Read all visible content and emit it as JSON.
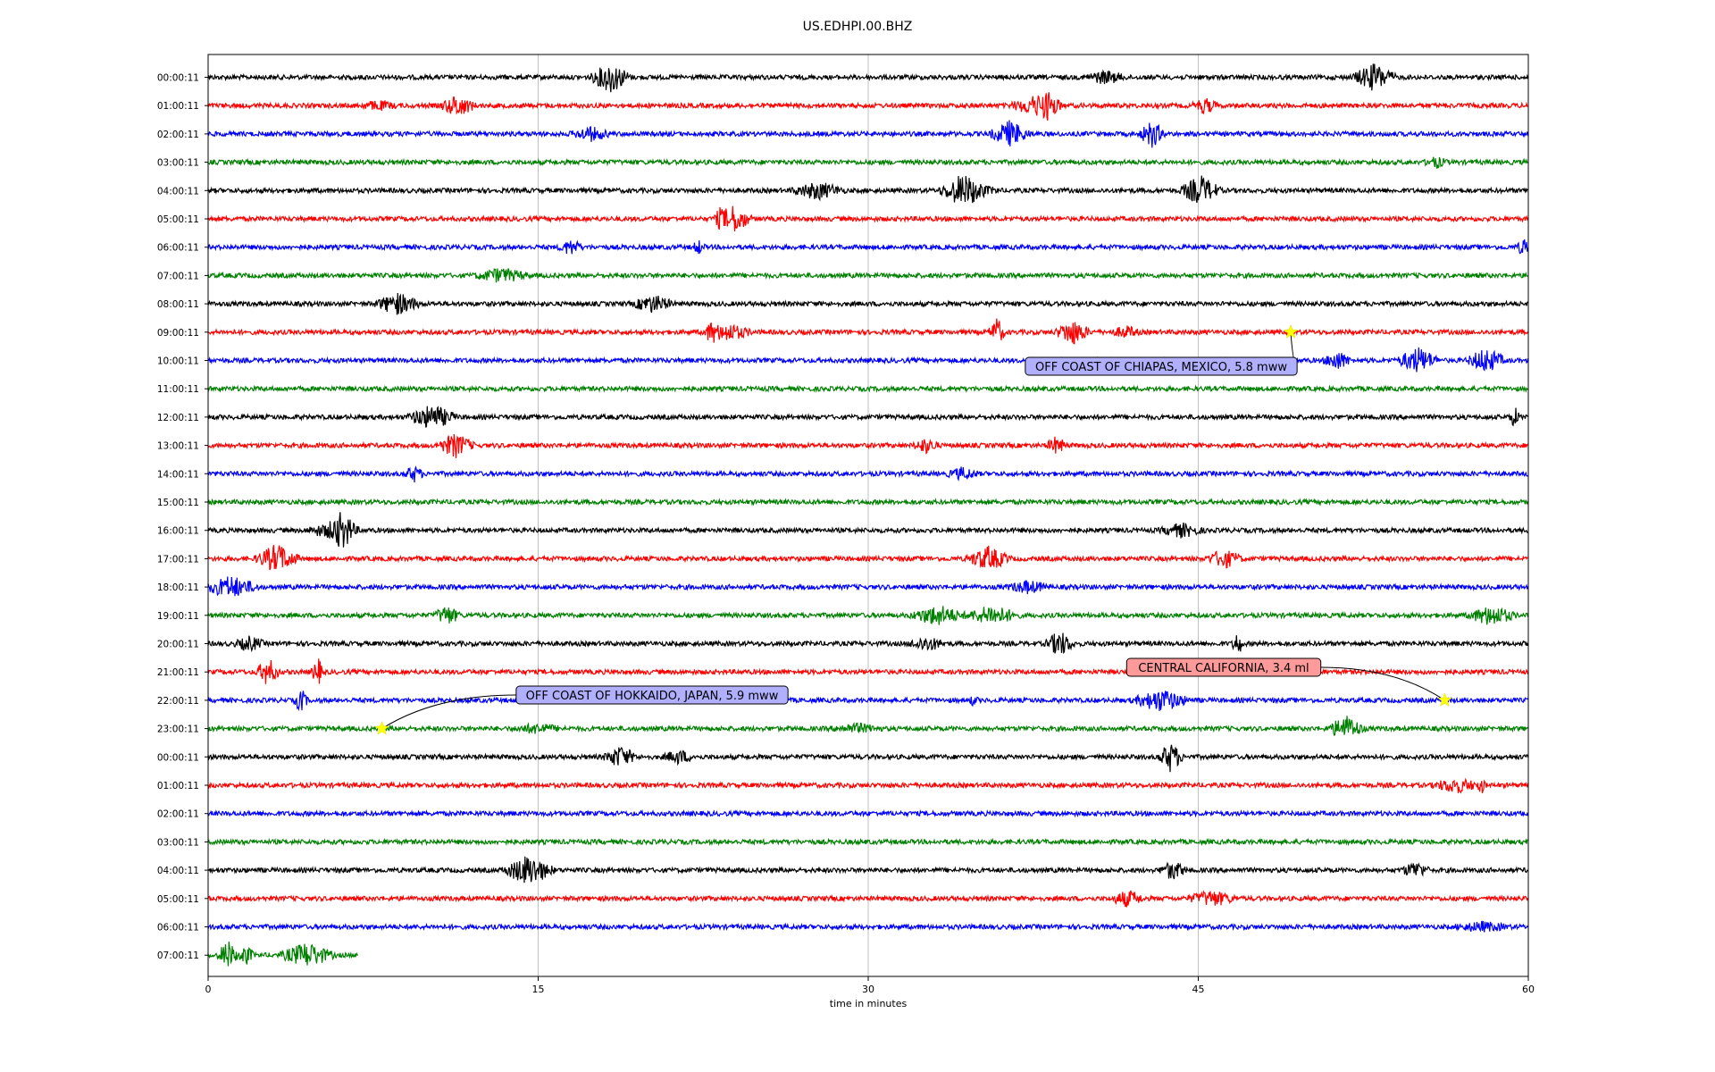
{
  "chart_data": {
    "type": "line",
    "title": "US.EDHPI.00.BHZ",
    "xlabel": "time in minutes",
    "ylabel": "",
    "xlim": [
      0,
      60
    ],
    "x_ticks": [
      {
        "value": 0,
        "label": "0"
      },
      {
        "value": 15,
        "label": "15"
      },
      {
        "value": 30,
        "label": "30"
      },
      {
        "value": 45,
        "label": "45"
      },
      {
        "value": 60,
        "label": "60"
      }
    ],
    "grid": "vertical",
    "trace_colors": [
      "#000000",
      "#ff0000",
      "#0000ff",
      "#008000"
    ],
    "rows": [
      {
        "label": "00:00:11",
        "end": 60
      },
      {
        "label": "01:00:11",
        "end": 60
      },
      {
        "label": "02:00:11",
        "end": 60
      },
      {
        "label": "03:00:11",
        "end": 60
      },
      {
        "label": "04:00:11",
        "end": 60
      },
      {
        "label": "05:00:11",
        "end": 60
      },
      {
        "label": "06:00:11",
        "end": 60
      },
      {
        "label": "07:00:11",
        "end": 60
      },
      {
        "label": "08:00:11",
        "end": 60
      },
      {
        "label": "09:00:11",
        "end": 60
      },
      {
        "label": "10:00:11",
        "end": 60
      },
      {
        "label": "11:00:11",
        "end": 60
      },
      {
        "label": "12:00:11",
        "end": 60
      },
      {
        "label": "13:00:11",
        "end": 60
      },
      {
        "label": "14:00:11",
        "end": 60
      },
      {
        "label": "15:00:11",
        "end": 60
      },
      {
        "label": "16:00:11",
        "end": 60
      },
      {
        "label": "17:00:11",
        "end": 60
      },
      {
        "label": "18:00:11",
        "end": 60
      },
      {
        "label": "19:00:11",
        "end": 60
      },
      {
        "label": "20:00:11",
        "end": 60
      },
      {
        "label": "21:00:11",
        "end": 60
      },
      {
        "label": "22:00:11",
        "end": 60
      },
      {
        "label": "23:00:11",
        "end": 60
      },
      {
        "label": "00:00:11",
        "end": 60
      },
      {
        "label": "01:00:11",
        "end": 60
      },
      {
        "label": "02:00:11",
        "end": 60
      },
      {
        "label": "03:00:11",
        "end": 60
      },
      {
        "label": "04:00:11",
        "end": 60
      },
      {
        "label": "05:00:11",
        "end": 60
      },
      {
        "label": "06:00:11",
        "end": 60
      },
      {
        "label": "07:00:11",
        "end": 6.8
      }
    ],
    "annotations": [
      {
        "text": "OFF COAST OF CHIAPAS, MEXICO, 5.8 mww",
        "row": 9,
        "minute": 49.2,
        "box_color": "#b0b0ff"
      },
      {
        "text": "CENTRAL CALIFORNIA, 3.4 ml",
        "row": 22,
        "minute": 56.2,
        "box_color": "#ff9a9a"
      },
      {
        "text": "OFF COAST OF HOKKAIDO, JAPAN, 5.9 mww",
        "row": 23,
        "minute": 7.9,
        "box_color": "#b0b0ff"
      }
    ],
    "event_marker_color": "#ffff00"
  }
}
